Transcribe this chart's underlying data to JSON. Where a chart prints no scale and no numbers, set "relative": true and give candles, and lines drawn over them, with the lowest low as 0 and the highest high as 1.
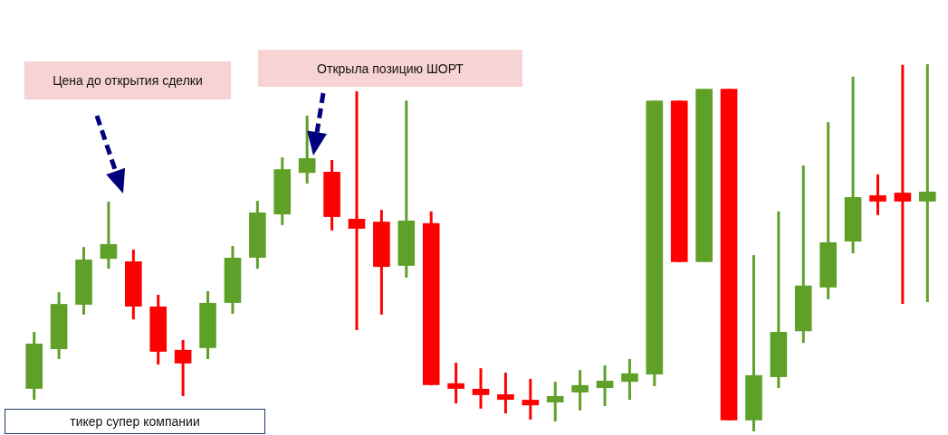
{
  "chart_data": {
    "type": "candlestick",
    "relative": true,
    "categories": [
      null,
      null,
      null,
      null,
      null,
      null,
      null,
      null,
      null,
      null,
      null,
      null,
      null,
      null,
      null,
      null,
      null,
      null,
      null,
      null,
      null,
      null,
      null,
      null,
      null,
      null,
      null,
      null,
      null,
      null,
      null,
      null,
      null,
      null,
      null,
      null,
      null
    ],
    "ohlc": [
      [
        0.116,
        0.271,
        0.086,
        0.239
      ],
      [
        0.224,
        0.379,
        0.197,
        0.347
      ],
      [
        0.345,
        0.502,
        0.318,
        0.468
      ],
      [
        0.47,
        0.626,
        0.443,
        0.51
      ],
      [
        0.463,
        0.495,
        0.305,
        0.34
      ],
      [
        0.34,
        0.372,
        0.182,
        0.217
      ],
      [
        0.222,
        0.249,
        0.096,
        0.185
      ],
      [
        0.227,
        0.382,
        0.197,
        0.35
      ],
      [
        0.35,
        0.505,
        0.32,
        0.473
      ],
      [
        0.473,
        0.628,
        0.443,
        0.596
      ],
      [
        0.591,
        0.746,
        0.562,
        0.714
      ],
      [
        0.704,
        0.86,
        0.675,
        0.744
      ],
      [
        0.707,
        0.739,
        0.547,
        0.584
      ],
      [
        0.579,
        0.926,
        0.276,
        0.552
      ],
      [
        0.571,
        0.603,
        0.318,
        0.448
      ],
      [
        0.451,
        0.901,
        0.419,
        0.574
      ],
      [
        0.567,
        0.599,
        0.126,
        0.126
      ],
      [
        0.131,
        0.187,
        0.076,
        0.116
      ],
      [
        0.116,
        0.172,
        0.062,
        0.099
      ],
      [
        0.101,
        0.16,
        0.049,
        0.086
      ],
      [
        0.086,
        0.143,
        0.032,
        0.071
      ],
      [
        0.079,
        0.135,
        0.027,
        0.096
      ],
      [
        0.106,
        0.167,
        0.057,
        0.126
      ],
      [
        0.118,
        0.18,
        0.069,
        0.138
      ],
      [
        0.135,
        0.197,
        0.086,
        0.158
      ],
      [
        0.155,
        0.901,
        0.123,
        0.901
      ],
      [
        0.901,
        0.901,
        0.461,
        0.461
      ],
      [
        0.461,
        0.933,
        0.461,
        0.933
      ],
      [
        0.933,
        0.933,
        0.03,
        0.03
      ],
      [
        0.03,
        0.48,
        0,
        0.153
      ],
      [
        0.148,
        0.599,
        0.118,
        0.271
      ],
      [
        0.273,
        0.724,
        0.241,
        0.397
      ],
      [
        0.392,
        0.842,
        0.36,
        0.515
      ],
      [
        0.517,
        0.966,
        0.485,
        0.638
      ],
      [
        0.643,
        0.7,
        0.589,
        0.626
      ],
      [
        0.65,
        0.998,
        0.347,
        0.626
      ],
      [
        0.626,
        1,
        0.352,
        0.653
      ]
    ],
    "colors": [
      "#5fa128",
      "#5fa128",
      "#5fa128",
      "#5fa128",
      "#ff0000",
      "#ff0000",
      "#ff0000",
      "#5fa128",
      "#5fa128",
      "#5fa128",
      "#5fa128",
      "#5fa128",
      "#ff0000",
      "#ff0000",
      "#ff0000",
      "#5fa128",
      "#ff0000",
      "#ff0000",
      "#ff0000",
      "#ff0000",
      "#ff0000",
      "#5fa128",
      "#5fa128",
      "#5fa128",
      "#5fa128",
      "#5fa128",
      "#ff0000",
      "#5fa128",
      "#ff0000",
      "#5fa128",
      "#5fa128",
      "#5fa128",
      "#5fa128",
      "#5fa128",
      "#ff0000",
      "#ff0000",
      "#5fa128"
    ],
    "annotations": [
      "Цена до открытия сделки",
      "Открыла позицию ШОРТ",
      "тикер супер компании"
    ]
  }
}
